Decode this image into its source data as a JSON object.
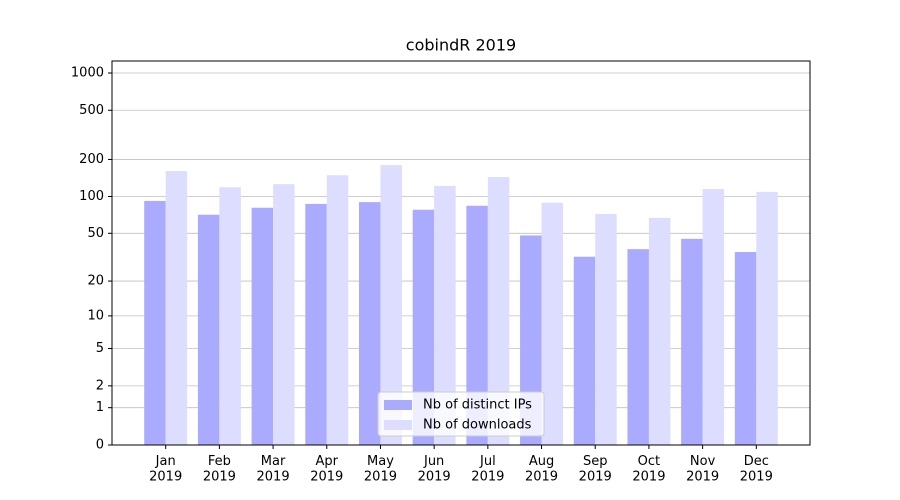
{
  "chart_data": {
    "type": "bar",
    "title": "cobindR 2019",
    "scale": "log1p",
    "categories": [
      "Jan\n2019",
      "Feb\n2019",
      "Mar\n2019",
      "Apr\n2019",
      "May\n2019",
      "Jun\n2019",
      "Jul\n2019",
      "Aug\n2019",
      "Sep\n2019",
      "Oct\n2019",
      "Nov\n2019",
      "Dec\n2019"
    ],
    "series": [
      {
        "name": "Nb of distinct IPs",
        "color": "#aaaaff",
        "values": [
          92,
          71,
          81,
          87,
          90,
          78,
          84,
          48,
          32,
          37,
          45,
          35
        ]
      },
      {
        "name": "Nb of downloads",
        "color": "#ddddff",
        "values": [
          161,
          119,
          126,
          149,
          180,
          122,
          144,
          89,
          72,
          67,
          115,
          109
        ]
      }
    ],
    "ylim": [
      0,
      1250
    ],
    "yticks": [
      0,
      1,
      2,
      5,
      10,
      20,
      50,
      100,
      200,
      500,
      1000
    ],
    "grid": true,
    "legend": "lower center"
  }
}
